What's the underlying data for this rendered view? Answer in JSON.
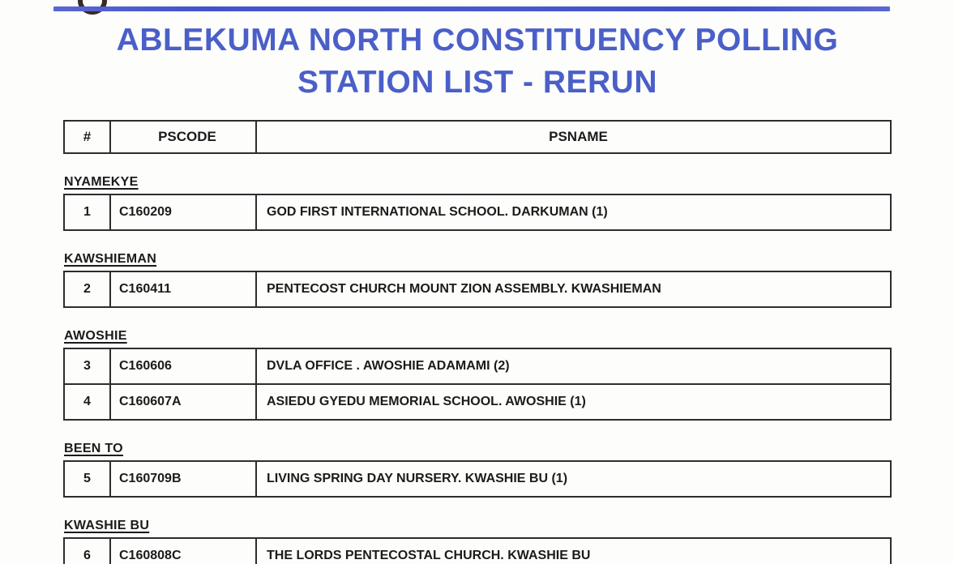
{
  "title": {
    "line1": "ABLEKUMA NORTH CONSTITUENCY POLLING",
    "line2": "STATION LIST - RERUN"
  },
  "table": {
    "headers": [
      "#",
      "PSCODE",
      "PSNAME"
    ],
    "sections": [
      {
        "name": "NYAMEKYE",
        "rows": [
          {
            "num": "1",
            "pscode": "C160209",
            "psname": "GOD FIRST INTERNATIONAL SCHOOL. DARKUMAN (1)"
          }
        ]
      },
      {
        "name": "KAWSHIEMAN",
        "rows": [
          {
            "num": "2",
            "pscode": "C160411",
            "psname": "PENTECOST CHURCH MOUNT ZION ASSEMBLY. KWASHIEMAN"
          }
        ]
      },
      {
        "name": "AWOSHIE",
        "rows": [
          {
            "num": "3",
            "pscode": "C160606",
            "psname": "DVLA OFFICE . AWOSHIE ADAMAMI (2)"
          },
          {
            "num": "4",
            "pscode": "C160607A",
            "psname": "ASIEDU GYEDU MEMORIAL SCHOOL. AWOSHIE (1)"
          }
        ]
      },
      {
        "name": "BEEN TO",
        "rows": [
          {
            "num": "5",
            "pscode": "C160709B",
            "psname": "LIVING SPRING DAY NURSERY. KWASHIE BU (1)"
          }
        ]
      },
      {
        "name": "KWASHIE BU",
        "rows": [
          {
            "num": "6",
            "pscode": "C160808C",
            "psname": "THE LORDS PENTECOSTAL CHURCH. KWASHIE BU"
          }
        ]
      }
    ]
  },
  "colors": {
    "title_blue": "#4a5fc8",
    "rule_blue": "#4353cb",
    "border_dark": "#2d2d2d",
    "text": "#1b1b1b"
  }
}
